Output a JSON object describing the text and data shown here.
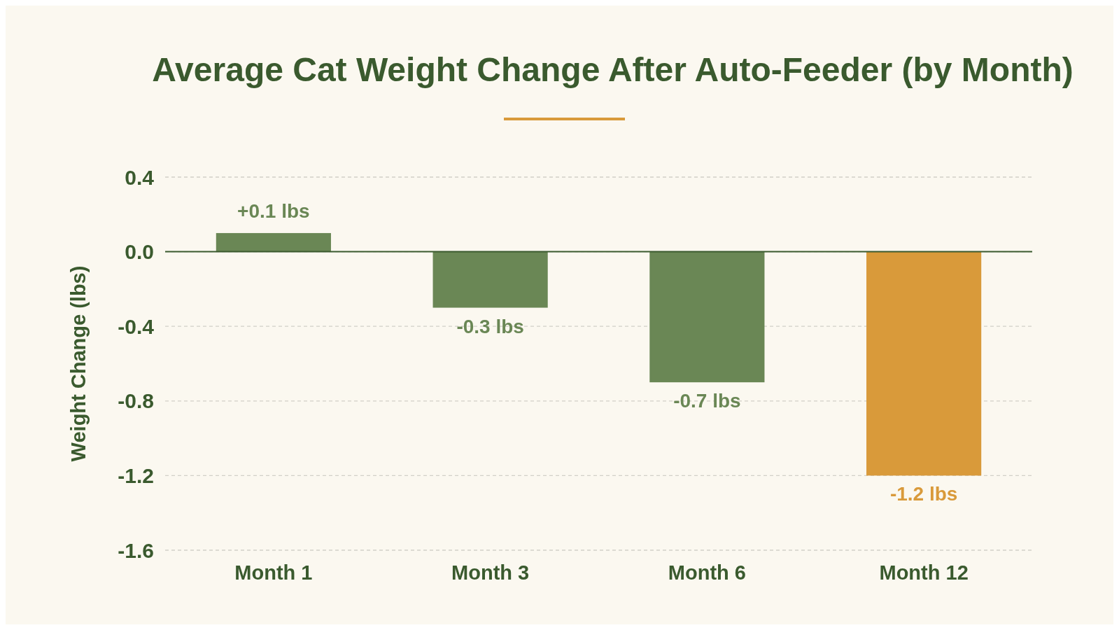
{
  "chart_data": {
    "type": "bar",
    "title": "Average Cat Weight Change After Auto-Feeder (by Month)",
    "ylabel": "Weight Change (lbs)",
    "categories": [
      "Month 1",
      "Month 3",
      "Month 6",
      "Month 12"
    ],
    "values": [
      0.1,
      -0.3,
      -0.7,
      -1.2
    ],
    "colors": [
      "#6a8755",
      "#6a8755",
      "#6a8755",
      "#d99a3a"
    ],
    "value_labels": [
      "+0.1 lbs",
      "-0.3 lbs",
      "-0.7 lbs",
      "-1.2 lbs"
    ],
    "ylim": [
      -1.6,
      0.4
    ],
    "yticks": [
      0.4,
      {
        "value": 0,
        "label": "0.0"
      },
      -0.4,
      -0.8,
      -1.2,
      -1.6
    ],
    "grid": "y",
    "ref_lines": [
      {
        "axis": "y",
        "value": 0,
        "color": "#3a5a2e"
      }
    ]
  }
}
